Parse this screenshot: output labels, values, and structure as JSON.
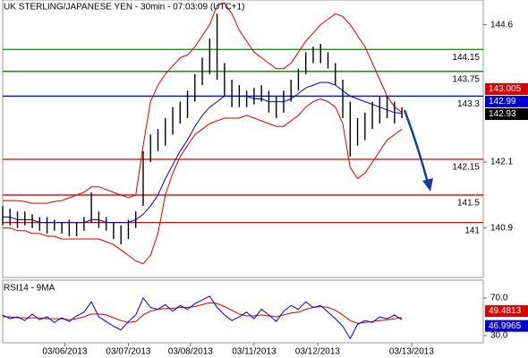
{
  "chart_data": [
    {
      "type": "ohlc",
      "title": "UK STERLING/JAPANESE YEN - 30min - 07:03:09 (UTC+1)",
      "x": [
        0,
        1,
        2,
        3,
        4,
        5,
        6,
        7,
        8,
        9,
        10,
        11,
        12,
        13,
        14,
        15,
        16,
        17,
        18,
        19,
        20,
        21,
        22,
        23,
        24,
        25,
        26,
        27,
        28,
        29,
        30,
        31,
        32,
        33,
        34,
        35,
        36,
        37,
        38,
        39,
        40,
        41,
        42,
        43,
        44,
        45,
        46,
        47,
        48,
        49,
        50,
        51,
        52,
        53,
        54
      ],
      "high": [
        141.3,
        141.25,
        141.2,
        141.2,
        141.15,
        141.1,
        141.1,
        141.05,
        141.0,
        141.05,
        141.0,
        141.1,
        141.55,
        141.2,
        141.1,
        141.0,
        140.95,
        141.05,
        141.2,
        142.3,
        142.6,
        142.7,
        142.9,
        143.1,
        143.2,
        143.4,
        143.7,
        144.0,
        144.35,
        144.8,
        143.9,
        143.6,
        143.5,
        143.4,
        143.45,
        143.5,
        143.4,
        143.3,
        143.4,
        143.6,
        143.8,
        144.1,
        144.2,
        144.25,
        144.1,
        143.9,
        143.6,
        143.2,
        142.9,
        143.0,
        143.2,
        143.3,
        143.3,
        143.2,
        143.1
      ],
      "low": [
        140.95,
        140.95,
        140.9,
        140.95,
        140.9,
        140.85,
        140.8,
        140.85,
        140.8,
        140.75,
        140.75,
        140.85,
        141.0,
        140.9,
        140.85,
        140.7,
        140.6,
        140.7,
        140.9,
        141.3,
        142.1,
        142.3,
        142.4,
        142.6,
        142.8,
        142.9,
        143.2,
        143.5,
        143.7,
        143.6,
        143.3,
        143.1,
        143.1,
        143.1,
        143.15,
        143.2,
        143.0,
        142.9,
        143.0,
        143.2,
        143.4,
        143.7,
        143.9,
        143.9,
        143.8,
        143.5,
        142.9,
        142.2,
        142.4,
        142.5,
        142.7,
        142.8,
        142.9,
        142.8,
        142.9
      ],
      "last_close": 142.93,
      "series": [
        {
          "color": "#d40000",
          "values": [
            141.4,
            141.4,
            141.4,
            141.38,
            141.35,
            141.35,
            141.35,
            141.38,
            141.4,
            141.45,
            141.5,
            141.55,
            141.65,
            141.65,
            141.6,
            141.55,
            141.5,
            141.45,
            141.5,
            142.4,
            143.2,
            143.5,
            143.7,
            143.85,
            144.0,
            144.05,
            144.2,
            144.4,
            144.6,
            144.95,
            145.0,
            144.8,
            144.5,
            144.3,
            144.1,
            144.0,
            143.9,
            143.8,
            143.8,
            143.9,
            144.1,
            144.3,
            144.45,
            144.6,
            144.7,
            144.8,
            144.75,
            144.6,
            144.4,
            144.2,
            143.9,
            143.6,
            143.3,
            143.1,
            143.005
          ]
        },
        {
          "color": "#d40000",
          "values": [
            140.9,
            140.9,
            140.85,
            140.85,
            140.8,
            140.8,
            140.75,
            140.75,
            140.7,
            140.7,
            140.7,
            140.7,
            140.7,
            140.7,
            140.65,
            140.6,
            140.5,
            140.4,
            140.3,
            140.25,
            140.4,
            140.8,
            141.5,
            141.9,
            142.2,
            142.4,
            142.6,
            142.7,
            142.8,
            142.85,
            142.9,
            142.9,
            142.9,
            142.95,
            142.9,
            142.85,
            142.8,
            142.75,
            142.75,
            142.85,
            142.95,
            143.1,
            143.2,
            143.25,
            143.2,
            143.1,
            142.8,
            142.0,
            141.8,
            141.9,
            142.1,
            142.3,
            142.5,
            142.6,
            142.7
          ]
        },
        {
          "color": "#0000cc",
          "values": [
            141.1,
            141.1,
            141.05,
            141.05,
            141.05,
            141.0,
            141.0,
            141.0,
            141.0,
            141.0,
            141.0,
            141.0,
            141.05,
            141.05,
            141.0,
            141.0,
            141.0,
            141.0,
            141.05,
            141.15,
            141.3,
            141.5,
            141.8,
            142.05,
            142.3,
            142.5,
            142.75,
            142.95,
            143.1,
            143.2,
            143.3,
            143.3,
            143.3,
            143.3,
            143.25,
            143.25,
            143.2,
            143.2,
            143.2,
            143.25,
            143.35,
            143.45,
            143.5,
            143.55,
            143.55,
            143.5,
            143.4,
            143.3,
            143.25,
            143.2,
            143.15,
            143.1,
            143.05,
            143.0,
            142.99
          ]
        }
      ],
      "levels": [
        {
          "value": 144.15,
          "color": "#008000"
        },
        {
          "value": 143.75,
          "color": "#008000"
        },
        {
          "value": 143.3,
          "color": "#0000ff"
        },
        {
          "value": 142.15,
          "color": "#e00000"
        },
        {
          "value": 141.5,
          "color": "#e00000"
        },
        {
          "value": 141,
          "color": "#e00000"
        }
      ],
      "xlim": [
        0,
        65
      ],
      "ylim": [
        140.0,
        145.05
      ],
      "yticks": [
        144.6,
        142.1,
        140.9
      ]
    },
    {
      "type": "line",
      "title": "RSI14 - 9MA",
      "x": [
        0,
        1,
        2,
        3,
        4,
        5,
        6,
        7,
        8,
        9,
        10,
        11,
        12,
        13,
        14,
        15,
        16,
        17,
        18,
        19,
        20,
        21,
        22,
        23,
        24,
        25,
        26,
        27,
        28,
        29,
        30,
        31,
        32,
        33,
        34,
        35,
        36,
        37,
        38,
        39,
        40,
        41,
        42,
        43,
        44,
        45,
        46,
        47,
        48,
        49,
        50,
        51,
        52,
        53,
        54
      ],
      "series": [
        {
          "color": "#d40000",
          "values": [
            50,
            50,
            49,
            49,
            49,
            49,
            48,
            48,
            48,
            47,
            48,
            50,
            53,
            53,
            52,
            49,
            46,
            44,
            45,
            52,
            56,
            58,
            59,
            59,
            60,
            60,
            61,
            63,
            65,
            64,
            61,
            57,
            53,
            51,
            51,
            52,
            51,
            50,
            52,
            54,
            55,
            58,
            60,
            61,
            60,
            57,
            52,
            46,
            43,
            44,
            45,
            46,
            47,
            48,
            49.4813
          ]
        },
        {
          "color": "#0000cc",
          "values": [
            52,
            48,
            50,
            46,
            53,
            47,
            50,
            44,
            49,
            45,
            51,
            55,
            66,
            50,
            45,
            40,
            36,
            45,
            52,
            70,
            60,
            58,
            63,
            56,
            62,
            58,
            64,
            68,
            72,
            60,
            52,
            46,
            50,
            55,
            48,
            58,
            52,
            45,
            56,
            62,
            58,
            66,
            60,
            62,
            55,
            48,
            40,
            27,
            42,
            46,
            44,
            50,
            48,
            52,
            46.9965
          ]
        }
      ],
      "xlim": [
        0,
        65
      ],
      "ylim": [
        22.4,
        89.05
      ],
      "yticks": [
        {
          "value": 70,
          "label": "70.0"
        },
        {
          "value": 30,
          "label": "30.0"
        }
      ],
      "xticks": [
        {
          "value": 8.4,
          "label": "03/06/2013"
        },
        {
          "value": 17,
          "label": "03/07/2013"
        },
        {
          "value": 25.4,
          "label": "03/08/2013"
        },
        {
          "value": 34,
          "label": "03/11/2013"
        },
        {
          "value": 42.6,
          "label": "03/12/2013"
        },
        {
          "value": 55.3,
          "label": "03/13/2013"
        }
      ]
    }
  ]
}
